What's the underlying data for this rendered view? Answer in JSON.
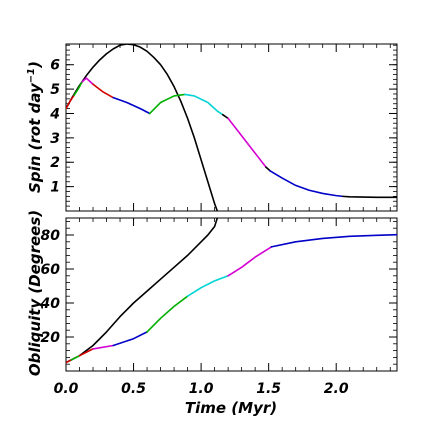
{
  "chart_data": [
    {
      "type": "line",
      "ylabel": "Spin (rot day",
      "ylabel_superscript": "−1",
      "ylabel_close": ")",
      "xlim": [
        0.0,
        2.45
      ],
      "ylim": [
        0.0,
        6.85
      ],
      "y_ticks": [
        "1",
        "2",
        "3",
        "4",
        "5",
        "6"
      ],
      "show_x_tick_labels": false,
      "grid": false,
      "series": [
        {
          "color": "#000000",
          "x": [
            0.0,
            0.05,
            0.1,
            0.15,
            0.2,
            0.25,
            0.3,
            0.35,
            0.4,
            0.45,
            0.5,
            0.55,
            0.6,
            0.65,
            0.7,
            0.75,
            0.8,
            0.85,
            0.9,
            0.95,
            1.0,
            1.05,
            1.1,
            1.12
          ],
          "y": [
            4.2,
            4.7,
            5.15,
            5.55,
            5.9,
            6.2,
            6.45,
            6.65,
            6.8,
            6.85,
            6.82,
            6.72,
            6.55,
            6.3,
            6.0,
            5.6,
            5.1,
            4.5,
            3.8,
            3.0,
            2.1,
            1.2,
            0.3,
            0.0
          ]
        },
        {
          "color_segments": [
            {
              "color": "#d40000",
              "x": [
                0.0,
                0.03,
                0.06
              ],
              "y": [
                4.2,
                4.5,
                4.75
              ]
            },
            {
              "color": "#00b000",
              "x": [
                0.06,
                0.09,
                0.12
              ],
              "y": [
                4.75,
                5.0,
                5.3
              ]
            },
            {
              "color": "#d400d4",
              "x": [
                0.12,
                0.15,
                0.2
              ],
              "y": [
                5.3,
                5.45,
                5.2
              ]
            },
            {
              "color": "#d40000",
              "x": [
                0.2,
                0.27,
                0.35
              ],
              "y": [
                5.2,
                4.9,
                4.65
              ]
            },
            {
              "color": "#0000c8",
              "x": [
                0.35,
                0.45,
                0.55,
                0.62
              ],
              "y": [
                4.65,
                4.45,
                4.2,
                4.0
              ]
            },
            {
              "color": "#00b000",
              "x": [
                0.62,
                0.7,
                0.8,
                0.88
              ],
              "y": [
                4.0,
                4.45,
                4.72,
                4.78
              ]
            },
            {
              "color": "#00d4d4",
              "x": [
                0.88,
                0.95,
                1.05,
                1.12,
                1.16
              ],
              "y": [
                4.78,
                4.72,
                4.45,
                4.1,
                3.95
              ]
            },
            {
              "color": "#000000",
              "x": [
                1.16,
                1.2
              ],
              "y": [
                3.95,
                3.8
              ]
            },
            {
              "color": "#d400d4",
              "x": [
                1.2,
                1.27,
                1.34,
                1.41,
                1.48
              ],
              "y": [
                3.8,
                3.3,
                2.8,
                2.3,
                1.8
              ]
            },
            {
              "color": "#000000",
              "x": [
                1.48,
                1.51
              ],
              "y": [
                1.8,
                1.65
              ]
            },
            {
              "color": "#0000c8",
              "x": [
                1.51,
                1.6,
                1.7,
                1.8,
                1.9,
                2.0,
                2.05
              ],
              "y": [
                1.65,
                1.35,
                1.05,
                0.85,
                0.72,
                0.63,
                0.6
              ]
            },
            {
              "color": "#000000",
              "x": [
                2.05,
                2.1,
                2.2,
                2.3,
                2.4,
                2.45
              ],
              "y": [
                0.6,
                0.58,
                0.57,
                0.56,
                0.56,
                0.56
              ]
            }
          ]
        }
      ]
    },
    {
      "type": "line",
      "ylabel": "Obliquity (Degrees)",
      "xlabel": "Time (Myr)",
      "xlim": [
        0.0,
        2.45
      ],
      "ylim": [
        0,
        90
      ],
      "x_ticks": [
        "0.0",
        "0.5",
        "1.0",
        "1.5",
        "2.0"
      ],
      "x_tick_values": [
        0.0,
        0.5,
        1.0,
        1.5,
        2.0
      ],
      "y_ticks": [
        "20",
        "40",
        "60",
        "80"
      ],
      "y_tick_values": [
        20,
        40,
        60,
        80
      ],
      "grid": false,
      "series": [
        {
          "color": "#000000",
          "x": [
            0.0,
            0.1,
            0.2,
            0.3,
            0.4,
            0.5,
            0.6,
            0.7,
            0.8,
            0.9,
            1.0,
            1.05,
            1.1,
            1.12
          ],
          "y": [
            5,
            9,
            15,
            23,
            32,
            40,
            47,
            54,
            61,
            68,
            76,
            80,
            85,
            90
          ]
        },
        {
          "color_segments": [
            {
              "color": "#d40000",
              "x": [
                0.0,
                0.04
              ],
              "y": [
                5,
                6.5
              ]
            },
            {
              "color": "#00b000",
              "x": [
                0.04,
                0.1
              ],
              "y": [
                6.5,
                9
              ]
            },
            {
              "color": "#d40000",
              "x": [
                0.1,
                0.2
              ],
              "y": [
                9,
                13
              ]
            },
            {
              "color": "#d400d4",
              "x": [
                0.2,
                0.35
              ],
              "y": [
                13,
                15
              ]
            },
            {
              "color": "#0000c8",
              "x": [
                0.35,
                0.5,
                0.6
              ],
              "y": [
                15,
                19,
                23
              ]
            },
            {
              "color": "#00b000",
              "x": [
                0.6,
                0.7,
                0.8,
                0.9
              ],
              "y": [
                23,
                31,
                38,
                44
              ]
            },
            {
              "color": "#00d4d4",
              "x": [
                0.9,
                1.0,
                1.1,
                1.2
              ],
              "y": [
                44,
                49,
                53,
                56
              ]
            },
            {
              "color": "#d400d4",
              "x": [
                1.2,
                1.3,
                1.4,
                1.52
              ],
              "y": [
                56,
                61,
                67,
                73
              ]
            },
            {
              "color": "#0000c8",
              "x": [
                1.52,
                1.7,
                1.9,
                2.1,
                2.3,
                2.45
              ],
              "y": [
                73,
                76,
                78,
                79.2,
                79.8,
                80.2
              ]
            }
          ]
        }
      ]
    }
  ]
}
